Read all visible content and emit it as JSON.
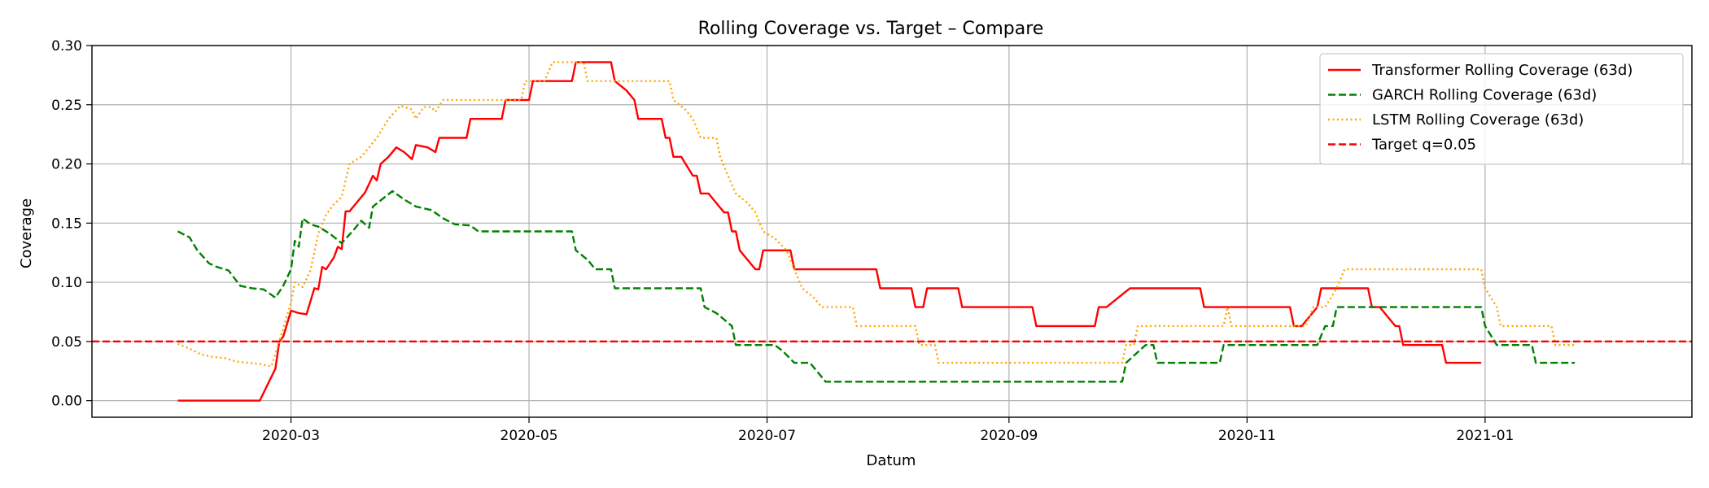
{
  "chart_data": {
    "type": "line",
    "title": "Rolling Coverage vs. Target – Compare",
    "xlabel": "Datum",
    "ylabel": "Coverage",
    "x_range": [
      "2020-01-10",
      "2021-02-23"
    ],
    "ylim": [
      -0.014,
      0.3
    ],
    "x_ticks": [
      "2020-03-01",
      "2020-05-01",
      "2020-07-01",
      "2020-09-01",
      "2020-11-01",
      "2021-01-01"
    ],
    "x_tick_labels": [
      "2020-03",
      "2020-05",
      "2020-07",
      "2020-09",
      "2020-11",
      "2021-01"
    ],
    "y_ticks": [
      0.0,
      0.05,
      0.1,
      0.15,
      0.2,
      0.25,
      0.3
    ],
    "y_tick_labels": [
      "0.00",
      "0.05",
      "0.10",
      "0.15",
      "0.20",
      "0.25",
      "0.30"
    ],
    "grid": true,
    "legend_position": "top-right",
    "series": [
      {
        "name": "Transformer Rolling Coverage (63d)",
        "color": "#ff0000",
        "style": "solid",
        "points": [
          [
            "2020-02-01",
            0.0
          ],
          [
            "2020-02-22",
            0.0
          ],
          [
            "2020-02-26",
            0.027
          ],
          [
            "2020-02-27",
            0.05
          ],
          [
            "2020-02-28",
            0.054
          ],
          [
            "2020-03-01",
            0.076
          ],
          [
            "2020-03-03",
            0.074
          ],
          [
            "2020-03-05",
            0.073
          ],
          [
            "2020-03-07",
            0.095
          ],
          [
            "2020-03-08",
            0.094
          ],
          [
            "2020-03-09",
            0.113
          ],
          [
            "2020-03-10",
            0.111
          ],
          [
            "2020-03-12",
            0.121
          ],
          [
            "2020-03-13",
            0.13
          ],
          [
            "2020-03-14",
            0.128
          ],
          [
            "2020-03-15",
            0.16
          ],
          [
            "2020-03-16",
            0.16
          ],
          [
            "2020-03-20",
            0.176
          ],
          [
            "2020-03-22",
            0.19
          ],
          [
            "2020-03-23",
            0.186
          ],
          [
            "2020-03-24",
            0.2
          ],
          [
            "2020-03-26",
            0.206
          ],
          [
            "2020-03-28",
            0.214
          ],
          [
            "2020-03-30",
            0.21
          ],
          [
            "2020-04-01",
            0.204
          ],
          [
            "2020-04-02",
            0.216
          ],
          [
            "2020-04-05",
            0.214
          ],
          [
            "2020-04-07",
            0.21
          ],
          [
            "2020-04-08",
            0.222
          ],
          [
            "2020-04-15",
            0.222
          ],
          [
            "2020-04-16",
            0.238
          ],
          [
            "2020-04-24",
            0.238
          ],
          [
            "2020-04-25",
            0.254
          ],
          [
            "2020-05-01",
            0.254
          ],
          [
            "2020-05-02",
            0.27
          ],
          [
            "2020-05-12",
            0.27
          ],
          [
            "2020-05-13",
            0.286
          ],
          [
            "2020-05-22",
            0.286
          ],
          [
            "2020-05-23",
            0.27
          ],
          [
            "2020-05-26",
            0.262
          ],
          [
            "2020-05-28",
            0.254
          ],
          [
            "2020-05-29",
            0.238
          ],
          [
            "2020-06-04",
            0.238
          ],
          [
            "2020-06-05",
            0.222
          ],
          [
            "2020-06-06",
            0.222
          ],
          [
            "2020-06-07",
            0.206
          ],
          [
            "2020-06-09",
            0.206
          ],
          [
            "2020-06-12",
            0.19
          ],
          [
            "2020-06-13",
            0.19
          ],
          [
            "2020-06-14",
            0.175
          ],
          [
            "2020-06-16",
            0.175
          ],
          [
            "2020-06-18",
            0.167
          ],
          [
            "2020-06-20",
            0.159
          ],
          [
            "2020-06-21",
            0.159
          ],
          [
            "2020-06-22",
            0.143
          ],
          [
            "2020-06-23",
            0.143
          ],
          [
            "2020-06-24",
            0.127
          ],
          [
            "2020-06-28",
            0.111
          ],
          [
            "2020-06-29",
            0.111
          ],
          [
            "2020-06-30",
            0.127
          ],
          [
            "2020-07-07",
            0.127
          ],
          [
            "2020-07-08",
            0.111
          ],
          [
            "2020-07-29",
            0.111
          ],
          [
            "2020-07-30",
            0.095
          ],
          [
            "2020-08-07",
            0.095
          ],
          [
            "2020-08-08",
            0.079
          ],
          [
            "2020-08-10",
            0.079
          ],
          [
            "2020-08-11",
            0.095
          ],
          [
            "2020-08-19",
            0.095
          ],
          [
            "2020-08-20",
            0.079
          ],
          [
            "2020-09-07",
            0.079
          ],
          [
            "2020-09-08",
            0.063
          ],
          [
            "2020-09-23",
            0.063
          ],
          [
            "2020-09-24",
            0.079
          ],
          [
            "2020-09-26",
            0.079
          ],
          [
            "2020-10-02",
            0.095
          ],
          [
            "2020-10-20",
            0.095
          ],
          [
            "2020-10-21",
            0.079
          ],
          [
            "2020-11-12",
            0.079
          ],
          [
            "2020-11-13",
            0.063
          ],
          [
            "2020-11-15",
            0.063
          ],
          [
            "2020-11-19",
            0.079
          ],
          [
            "2020-11-20",
            0.095
          ],
          [
            "2020-12-02",
            0.095
          ],
          [
            "2020-12-03",
            0.079
          ],
          [
            "2020-12-05",
            0.079
          ],
          [
            "2020-12-09",
            0.063
          ],
          [
            "2020-12-10",
            0.063
          ],
          [
            "2020-12-11",
            0.047
          ],
          [
            "2020-12-21",
            0.047
          ],
          [
            "2020-12-22",
            0.032
          ],
          [
            "2020-12-31",
            0.032
          ]
        ]
      },
      {
        "name": "GARCH Rolling Coverage (63d)",
        "color": "#008000",
        "style": "dashed",
        "points": [
          [
            "2020-02-01",
            0.143
          ],
          [
            "2020-02-04",
            0.138
          ],
          [
            "2020-02-06",
            0.127
          ],
          [
            "2020-02-09",
            0.116
          ],
          [
            "2020-02-11",
            0.113
          ],
          [
            "2020-02-14",
            0.11
          ],
          [
            "2020-02-17",
            0.097
          ],
          [
            "2020-02-20",
            0.095
          ],
          [
            "2020-02-23",
            0.094
          ],
          [
            "2020-02-26",
            0.087
          ],
          [
            "2020-02-28",
            0.097
          ],
          [
            "2020-03-01",
            0.111
          ],
          [
            "2020-03-02",
            0.135
          ],
          [
            "2020-03-03",
            0.13
          ],
          [
            "2020-03-04",
            0.154
          ],
          [
            "2020-03-06",
            0.149
          ],
          [
            "2020-03-08",
            0.147
          ],
          [
            "2020-03-11",
            0.141
          ],
          [
            "2020-03-14",
            0.133
          ],
          [
            "2020-03-17",
            0.144
          ],
          [
            "2020-03-19",
            0.152
          ],
          [
            "2020-03-21",
            0.146
          ],
          [
            "2020-03-22",
            0.164
          ],
          [
            "2020-03-27",
            0.177
          ],
          [
            "2020-03-30",
            0.17
          ],
          [
            "2020-04-02",
            0.164
          ],
          [
            "2020-04-06",
            0.161
          ],
          [
            "2020-04-09",
            0.154
          ],
          [
            "2020-04-12",
            0.149
          ],
          [
            "2020-04-16",
            0.148
          ],
          [
            "2020-04-18",
            0.143
          ],
          [
            "2020-05-12",
            0.143
          ],
          [
            "2020-05-13",
            0.127
          ],
          [
            "2020-05-16",
            0.119
          ],
          [
            "2020-05-18",
            0.111
          ],
          [
            "2020-05-22",
            0.111
          ],
          [
            "2020-05-23",
            0.095
          ],
          [
            "2020-06-14",
            0.095
          ],
          [
            "2020-06-15",
            0.079
          ],
          [
            "2020-06-18",
            0.074
          ],
          [
            "2020-06-22",
            0.063
          ],
          [
            "2020-06-23",
            0.047
          ],
          [
            "2020-07-03",
            0.047
          ],
          [
            "2020-07-05",
            0.042
          ],
          [
            "2020-07-08",
            0.032
          ],
          [
            "2020-07-12",
            0.032
          ],
          [
            "2020-07-16",
            0.016
          ],
          [
            "2020-09-30",
            0.016
          ],
          [
            "2020-10-01",
            0.032
          ],
          [
            "2020-10-06",
            0.047
          ],
          [
            "2020-10-08",
            0.047
          ],
          [
            "2020-10-09",
            0.032
          ],
          [
            "2020-10-25",
            0.032
          ],
          [
            "2020-10-26",
            0.047
          ],
          [
            "2020-11-19",
            0.047
          ],
          [
            "2020-11-21",
            0.063
          ],
          [
            "2020-11-23",
            0.063
          ],
          [
            "2020-11-24",
            0.079
          ],
          [
            "2020-12-31",
            0.079
          ],
          [
            "2021-01-01",
            0.063
          ],
          [
            "2021-01-04",
            0.047
          ],
          [
            "2021-01-13",
            0.047
          ],
          [
            "2021-01-14",
            0.032
          ],
          [
            "2021-01-24",
            0.032
          ]
        ]
      },
      {
        "name": "LSTM Rolling Coverage (63d)",
        "color": "#ffa500",
        "style": "dotted",
        "points": [
          [
            "2020-02-01",
            0.048
          ],
          [
            "2020-02-04",
            0.044
          ],
          [
            "2020-02-07",
            0.039
          ],
          [
            "2020-02-10",
            0.037
          ],
          [
            "2020-02-13",
            0.036
          ],
          [
            "2020-02-16",
            0.033
          ],
          [
            "2020-02-19",
            0.032
          ],
          [
            "2020-02-22",
            0.031
          ],
          [
            "2020-02-25",
            0.029
          ],
          [
            "2020-02-27",
            0.05
          ],
          [
            "2020-03-01",
            0.083
          ],
          [
            "2020-03-02",
            0.1
          ],
          [
            "2020-03-04",
            0.096
          ],
          [
            "2020-03-06",
            0.11
          ],
          [
            "2020-03-08",
            0.141
          ],
          [
            "2020-03-10",
            0.157
          ],
          [
            "2020-03-12",
            0.166
          ],
          [
            "2020-03-14",
            0.172
          ],
          [
            "2020-03-16",
            0.2
          ],
          [
            "2020-03-19",
            0.206
          ],
          [
            "2020-03-21",
            0.214
          ],
          [
            "2020-03-23",
            0.222
          ],
          [
            "2020-03-26",
            0.238
          ],
          [
            "2020-03-29",
            0.249
          ],
          [
            "2020-04-01",
            0.246
          ],
          [
            "2020-04-02",
            0.238
          ],
          [
            "2020-04-04",
            0.248
          ],
          [
            "2020-04-06",
            0.248
          ],
          [
            "2020-04-07",
            0.244
          ],
          [
            "2020-04-09",
            0.254
          ],
          [
            "2020-04-29",
            0.254
          ],
          [
            "2020-04-30",
            0.27
          ],
          [
            "2020-05-05",
            0.27
          ],
          [
            "2020-05-07",
            0.286
          ],
          [
            "2020-05-15",
            0.286
          ],
          [
            "2020-05-16",
            0.27
          ],
          [
            "2020-06-06",
            0.27
          ],
          [
            "2020-06-07",
            0.254
          ],
          [
            "2020-06-10",
            0.246
          ],
          [
            "2020-06-12",
            0.238
          ],
          [
            "2020-06-14",
            0.222
          ],
          [
            "2020-06-18",
            0.222
          ],
          [
            "2020-06-19",
            0.206
          ],
          [
            "2020-06-21",
            0.19
          ],
          [
            "2020-06-23",
            0.175
          ],
          [
            "2020-06-26",
            0.167
          ],
          [
            "2020-06-28",
            0.159
          ],
          [
            "2020-06-30",
            0.143
          ],
          [
            "2020-07-03",
            0.137
          ],
          [
            "2020-07-06",
            0.127
          ],
          [
            "2020-07-08",
            0.111
          ],
          [
            "2020-07-10",
            0.095
          ],
          [
            "2020-07-13",
            0.087
          ],
          [
            "2020-07-15",
            0.079
          ],
          [
            "2020-07-23",
            0.079
          ],
          [
            "2020-07-24",
            0.063
          ],
          [
            "2020-08-08",
            0.063
          ],
          [
            "2020-08-09",
            0.047
          ],
          [
            "2020-08-13",
            0.047
          ],
          [
            "2020-08-14",
            0.032
          ],
          [
            "2020-09-30",
            0.032
          ],
          [
            "2020-10-01",
            0.047
          ],
          [
            "2020-10-03",
            0.047
          ],
          [
            "2020-10-04",
            0.063
          ],
          [
            "2020-10-26",
            0.063
          ],
          [
            "2020-10-27",
            0.079
          ],
          [
            "2020-10-28",
            0.063
          ],
          [
            "2020-11-16",
            0.063
          ],
          [
            "2020-11-18",
            0.079
          ],
          [
            "2020-11-21",
            0.079
          ],
          [
            "2020-11-24",
            0.095
          ],
          [
            "2020-11-26",
            0.111
          ],
          [
            "2020-12-31",
            0.111
          ],
          [
            "2021-01-01",
            0.095
          ],
          [
            "2021-01-04",
            0.079
          ],
          [
            "2021-01-05",
            0.063
          ],
          [
            "2021-01-18",
            0.063
          ],
          [
            "2021-01-19",
            0.047
          ],
          [
            "2021-01-24",
            0.047
          ]
        ]
      }
    ],
    "reference_lines": [
      {
        "name": "Target q=0.05",
        "y": 0.05,
        "color": "#ff0000",
        "style": "dashed"
      }
    ]
  }
}
